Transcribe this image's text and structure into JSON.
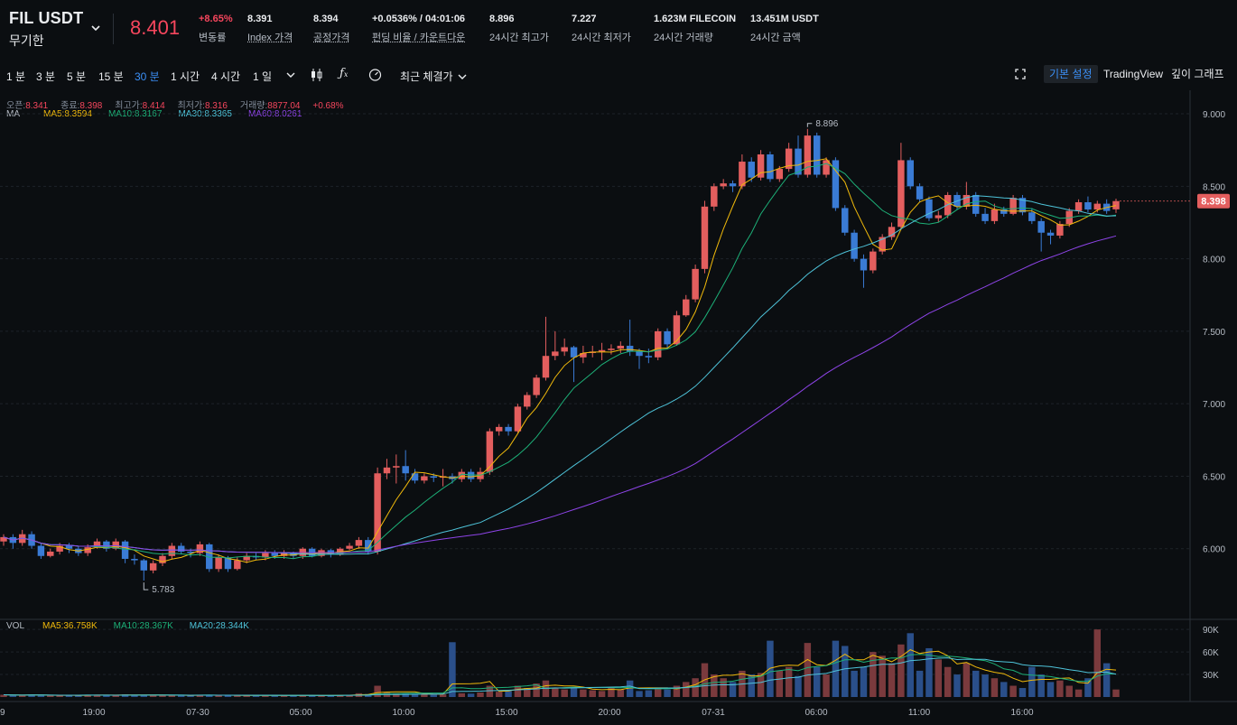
{
  "header": {
    "symbol": "FIL USDT",
    "contract": "무기한",
    "price": "8.401",
    "stats": [
      {
        "value": "+8.65%",
        "label": "변동률",
        "red": true
      },
      {
        "value": "8.391",
        "label": "Index 가격"
      },
      {
        "value": "8.394",
        "label": "공정가격"
      },
      {
        "value": "+0.0536% / 04:01:06",
        "label": "펀딩 비율 / 카운트다운"
      },
      {
        "value": "8.896",
        "label": "24시간 최고가"
      },
      {
        "value": "7.227",
        "label": "24시간 최저가"
      },
      {
        "value": "1.623M FILECOIN",
        "label": "24시간 거래량"
      },
      {
        "value": "13.451M USDT",
        "label": "24시간 금액"
      }
    ]
  },
  "toolbar": {
    "intervals": [
      "1 분",
      "3 분",
      "5 분",
      "15 분",
      "30 분",
      "1 시간",
      "4 시간",
      "1 일"
    ],
    "active_interval": "30 분",
    "last_price_label": "최근 체결가",
    "views": [
      "기본 설정",
      "TradingView",
      "깊이 그래프"
    ],
    "active_view": "기본 설정"
  },
  "info_bar": {
    "open_label": "오픈:",
    "open": "8.341",
    "close_label": "종료:",
    "close": "8.398",
    "high_label": "최고가:",
    "high": "8.414",
    "low_label": "최저가:",
    "low": "8.316",
    "vol_label": "거래량:",
    "vol": "8877.04",
    "change": "+0.68%"
  },
  "ma_bar": {
    "label": "MA",
    "items": [
      {
        "text": "MA5:8.3594",
        "color": "#f0b90b"
      },
      {
        "text": "MA10:8.3167",
        "color": "#1db078"
      },
      {
        "text": "MA30:8.3365",
        "color": "#4ec3d9"
      },
      {
        "text": "MA60:8.0261",
        "color": "#8e44e8"
      }
    ]
  },
  "vol_bar": {
    "label": "VOL",
    "items": [
      {
        "text": "MA5:36.758K",
        "color": "#f0b90b"
      },
      {
        "text": "MA10:28.367K",
        "color": "#1db078"
      },
      {
        "text": "MA20:28.344K",
        "color": "#4ec3d9"
      }
    ]
  },
  "chart_data": {
    "type": "candlestick",
    "price_axis": [
      "9.000",
      "8.500",
      "8.000",
      "7.500",
      "7.000",
      "6.500",
      "6.000"
    ],
    "price_range": [
      5.55,
      9.1
    ],
    "volume_axis": [
      "90K",
      "60K",
      "30K"
    ],
    "volume_range": [
      0,
      95000
    ],
    "time_axis": [
      "9",
      "19:00",
      "07-30",
      "05:00",
      "10:00",
      "15:00",
      "20:00",
      "07-31",
      "06:00",
      "11:00",
      "16:00"
    ],
    "current_price_tag": "8.398",
    "high_marker": "8.896",
    "low_marker": "5.783",
    "candles": [
      [
        6.05,
        6.08,
        6.02,
        6.1
      ],
      [
        6.08,
        6.04,
        6.0,
        6.1
      ],
      [
        6.04,
        6.1,
        6.02,
        6.13
      ],
      [
        6.1,
        6.02,
        6.0,
        6.12
      ],
      [
        6.02,
        5.95,
        5.93,
        6.04
      ],
      [
        5.95,
        5.98,
        5.94,
        6.0
      ],
      [
        5.98,
        6.02,
        5.96,
        6.04
      ],
      [
        6.02,
        6.0,
        5.97,
        6.04
      ],
      [
        6.0,
        5.97,
        5.95,
        6.02
      ],
      [
        5.97,
        6.01,
        5.95,
        6.03
      ],
      [
        6.01,
        6.05,
        6.0,
        6.07
      ],
      [
        6.05,
        6.0,
        5.98,
        6.06
      ],
      [
        6.0,
        6.05,
        5.99,
        6.07
      ],
      [
        6.05,
        5.93,
        5.9,
        6.06
      ],
      [
        5.93,
        5.92,
        5.89,
        5.96
      ],
      [
        5.92,
        5.85,
        5.78,
        5.93
      ],
      [
        5.85,
        5.9,
        5.83,
        5.92
      ],
      [
        5.9,
        5.95,
        5.88,
        5.97
      ],
      [
        5.95,
        6.02,
        5.93,
        6.04
      ],
      [
        6.02,
        5.98,
        5.96,
        6.04
      ],
      [
        5.98,
        5.97,
        5.94,
        6.0
      ],
      [
        5.97,
        6.03,
        5.95,
        6.05
      ],
      [
        6.03,
        5.86,
        5.84,
        6.04
      ],
      [
        5.86,
        5.94,
        5.84,
        5.96
      ],
      [
        5.94,
        5.86,
        5.84,
        5.95
      ],
      [
        5.86,
        5.92,
        5.85,
        5.94
      ],
      [
        5.92,
        5.95,
        5.9,
        5.97
      ],
      [
        5.95,
        5.94,
        5.92,
        5.97
      ],
      [
        5.94,
        5.97,
        5.92,
        5.99
      ],
      [
        5.97,
        5.95,
        5.93,
        5.99
      ],
      [
        5.95,
        5.97,
        5.93,
        5.99
      ],
      [
        5.97,
        5.95,
        5.93,
        5.98
      ],
      [
        5.95,
        6.0,
        5.93,
        6.01
      ],
      [
        6.0,
        5.95,
        5.94,
        6.01
      ],
      [
        5.95,
        5.99,
        5.94,
        6.0
      ],
      [
        5.99,
        5.96,
        5.94,
        6.0
      ],
      [
        5.96,
        6.0,
        5.95,
        6.01
      ],
      [
        6.0,
        6.02,
        5.99,
        6.04
      ],
      [
        6.02,
        6.06,
        6.0,
        6.08
      ],
      [
        6.06,
        5.98,
        5.96,
        6.08
      ],
      [
        5.98,
        6.52,
        5.96,
        6.56
      ],
      [
        6.52,
        6.56,
        6.48,
        6.62
      ],
      [
        6.56,
        6.57,
        6.45,
        6.65
      ],
      [
        6.57,
        6.52,
        6.47,
        6.68
      ],
      [
        6.52,
        6.47,
        6.45,
        6.55
      ],
      [
        6.47,
        6.5,
        6.45,
        6.52
      ],
      [
        6.5,
        6.49,
        6.46,
        6.52
      ],
      [
        6.49,
        6.5,
        6.43,
        6.55
      ],
      [
        6.5,
        6.48,
        6.45,
        6.52
      ],
      [
        6.48,
        6.53,
        6.46,
        6.55
      ],
      [
        6.53,
        6.48,
        6.46,
        6.55
      ],
      [
        6.48,
        6.53,
        6.46,
        6.56
      ],
      [
        6.53,
        6.81,
        6.51,
        6.83
      ],
      [
        6.81,
        6.84,
        6.78,
        6.86
      ],
      [
        6.84,
        6.81,
        6.78,
        6.86
      ],
      [
        6.81,
        6.98,
        6.8,
        7.0
      ],
      [
        6.98,
        7.06,
        6.96,
        7.08
      ],
      [
        7.06,
        7.18,
        7.04,
        7.2
      ],
      [
        7.18,
        7.33,
        7.16,
        7.6
      ],
      [
        7.33,
        7.36,
        7.3,
        7.5
      ],
      [
        7.36,
        7.39,
        7.33,
        7.45
      ],
      [
        7.39,
        7.32,
        7.15,
        7.4
      ],
      [
        7.32,
        7.35,
        7.28,
        7.4
      ],
      [
        7.35,
        7.36,
        7.32,
        7.4
      ],
      [
        7.36,
        7.37,
        7.3,
        7.42
      ],
      [
        7.37,
        7.38,
        7.34,
        7.41
      ],
      [
        7.38,
        7.4,
        7.35,
        7.43
      ],
      [
        7.4,
        7.36,
        7.33,
        7.58
      ],
      [
        7.36,
        7.33,
        7.24,
        7.38
      ],
      [
        7.33,
        7.32,
        7.28,
        7.38
      ],
      [
        7.32,
        7.5,
        7.3,
        7.52
      ],
      [
        7.5,
        7.41,
        7.38,
        7.52
      ],
      [
        7.41,
        7.61,
        7.4,
        7.64
      ],
      [
        7.61,
        7.72,
        7.6,
        7.75
      ],
      [
        7.72,
        7.93,
        7.7,
        7.96
      ],
      [
        7.93,
        8.36,
        7.9,
        8.4
      ],
      [
        8.36,
        8.5,
        8.33,
        8.52
      ],
      [
        8.5,
        8.52,
        8.48,
        8.55
      ],
      [
        8.52,
        8.5,
        8.46,
        8.54
      ],
      [
        8.5,
        8.67,
        8.48,
        8.72
      ],
      [
        8.67,
        8.56,
        8.53,
        8.7
      ],
      [
        8.56,
        8.72,
        8.54,
        8.75
      ],
      [
        8.72,
        8.55,
        8.53,
        8.74
      ],
      [
        8.55,
        8.62,
        8.53,
        8.64
      ],
      [
        8.62,
        8.76,
        8.6,
        8.8
      ],
      [
        8.76,
        8.58,
        8.56,
        8.85
      ],
      [
        8.58,
        8.85,
        8.56,
        8.896
      ],
      [
        8.85,
        8.58,
        8.56,
        8.87
      ],
      [
        8.58,
        8.68,
        8.56,
        8.7
      ],
      [
        8.68,
        8.35,
        8.33,
        8.7
      ],
      [
        8.35,
        8.18,
        8.16,
        8.37
      ],
      [
        8.18,
        8.0,
        7.98,
        8.2
      ],
      [
        8.0,
        7.92,
        7.8,
        8.03
      ],
      [
        7.92,
        8.05,
        7.9,
        8.07
      ],
      [
        8.05,
        8.15,
        8.03,
        8.17
      ],
      [
        8.15,
        8.22,
        8.13,
        8.25
      ],
      [
        8.22,
        8.68,
        8.2,
        8.8
      ],
      [
        8.68,
        8.5,
        8.48,
        8.7
      ],
      [
        8.5,
        8.41,
        8.39,
        8.52
      ],
      [
        8.41,
        8.28,
        8.26,
        8.43
      ],
      [
        8.28,
        8.3,
        8.25,
        8.33
      ],
      [
        8.3,
        8.44,
        8.28,
        8.46
      ],
      [
        8.44,
        8.36,
        8.34,
        8.46
      ],
      [
        8.36,
        8.44,
        8.34,
        8.53
      ],
      [
        8.44,
        8.31,
        8.29,
        8.46
      ],
      [
        8.31,
        8.26,
        8.24,
        8.35
      ],
      [
        8.26,
        8.34,
        8.24,
        8.38
      ],
      [
        8.34,
        8.31,
        8.29,
        8.36
      ],
      [
        8.31,
        8.42,
        8.3,
        8.44
      ],
      [
        8.42,
        8.32,
        8.3,
        8.44
      ],
      [
        8.32,
        8.26,
        8.24,
        8.35
      ],
      [
        8.26,
        8.18,
        8.05,
        8.28
      ],
      [
        8.18,
        8.16,
        8.1,
        8.2
      ],
      [
        8.16,
        8.24,
        8.14,
        8.26
      ],
      [
        8.24,
        8.33,
        8.22,
        8.35
      ],
      [
        8.33,
        8.39,
        8.31,
        8.41
      ],
      [
        8.39,
        8.34,
        8.32,
        8.43
      ],
      [
        8.34,
        8.38,
        8.32,
        8.4
      ],
      [
        8.38,
        8.33,
        8.31,
        8.41
      ],
      [
        8.341,
        8.398,
        8.316,
        8.414
      ]
    ],
    "volumes": [
      3000,
      2500,
      2000,
      3500,
      2200,
      1800,
      2000,
      2500,
      2200,
      3000,
      2800,
      2400,
      2000,
      3500,
      2500,
      2800,
      2200,
      2600,
      2200,
      2000,
      2100,
      3000,
      2500,
      2200,
      2000,
      1800,
      2000,
      2200,
      2400,
      2000,
      1800,
      2000,
      2200,
      2400,
      2000,
      2300,
      2600,
      3000,
      5000,
      4000,
      15000,
      6000,
      5000,
      4500,
      4000,
      3500,
      3000,
      3500,
      73000,
      5000,
      4500,
      6000,
      15000,
      7000,
      8000,
      15000,
      12000,
      18000,
      22000,
      12000,
      10000,
      12000,
      10000,
      9000,
      8000,
      12000,
      10000,
      22000,
      8000,
      9000,
      12000,
      10000,
      15000,
      20000,
      25000,
      45000,
      30000,
      25000,
      20000,
      35000,
      30000,
      32000,
      75000,
      35000,
      40000,
      28000,
      72000,
      40000,
      30000,
      75000,
      68000,
      35000,
      40000,
      60000,
      55000,
      45000,
      70000,
      85000,
      35000,
      65000,
      50000,
      40000,
      30000,
      45000,
      35000,
      30000,
      25000,
      20000,
      15000,
      12000,
      40000,
      30000,
      20000,
      22000,
      15000,
      10000,
      25000,
      90000,
      45000,
      10000
    ]
  }
}
